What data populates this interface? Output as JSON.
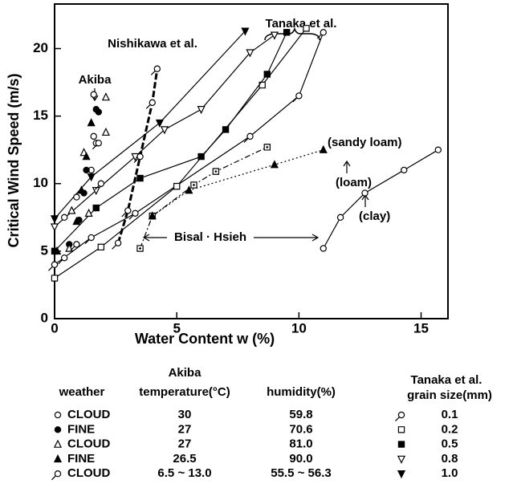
{
  "chart_data": {
    "type": "scatter",
    "ylabel": "Critical Wind Speed (m/s)",
    "xlabel": "Water Content  w   (%)",
    "xlim": [
      0,
      16.1
    ],
    "ylim": [
      0,
      23.3
    ],
    "xticks": [
      0,
      5,
      10,
      15
    ],
    "yticks": [
      0,
      5,
      10,
      15,
      20
    ],
    "color": "#000000",
    "series": [
      {
        "marker": "tailed-circle",
        "line": "solid",
        "x": [
          0,
          1.5,
          3.3,
          8,
          10,
          11
        ],
        "values": [
          4,
          6,
          7.8,
          13.5,
          16.5,
          21.2
        ]
      },
      {
        "marker": "open-square",
        "line": "solid",
        "x": [
          0,
          1.9,
          5,
          8.5,
          10.3
        ],
        "values": [
          3,
          5.3,
          9.8,
          17.3,
          21.5
        ]
      },
      {
        "marker": "filled-square",
        "line": "solid",
        "x": [
          0,
          1.7,
          3.5,
          6,
          7,
          8.7,
          9.5
        ],
        "values": [
          5,
          8.2,
          10.4,
          12,
          14,
          18.1,
          21.2
        ]
      },
      {
        "marker": "open-tri-down",
        "line": "solid",
        "x": [
          0,
          1.7,
          3.3,
          4.5,
          6,
          8,
          9
        ],
        "values": [
          6.8,
          9.5,
          12,
          14,
          15.5,
          19.7,
          21
        ]
      },
      {
        "marker": "filled-tri-down",
        "line": "solid",
        "x": [
          0,
          1.5,
          4.3,
          7.8
        ],
        "values": [
          7.4,
          10.5,
          14.5,
          21.3
        ]
      },
      {
        "marker": "dot-square",
        "line": "dashdot",
        "x": [
          3.5,
          4,
          5.7,
          6.6,
          8.7
        ],
        "values": [
          5.2,
          7.6,
          9.9,
          10.9,
          12.7
        ]
      },
      {
        "marker": "filled-triangle",
        "line": "dotted",
        "x": [
          4,
          5.5,
          9,
          11
        ],
        "values": [
          7.6,
          9.5,
          11.4,
          12.5
        ]
      },
      {
        "marker": "open-circle",
        "line": "solid",
        "x": [
          11,
          11.7,
          12.7,
          14.3,
          15.7
        ],
        "values": [
          5.2,
          7.5,
          9.3,
          11,
          12.5
        ]
      },
      {
        "marker": "tailed-circle",
        "line": "thickdash",
        "x": [
          2.6,
          3,
          3.5,
          4,
          4.2
        ],
        "values": [
          5.6,
          8,
          12,
          16,
          18.5
        ]
      },
      {
        "marker": "open-circle",
        "line": "none",
        "x": [
          1.6,
          1.6,
          1.7,
          1.5,
          0.9,
          0.4
        ],
        "values": [
          16.6,
          13.5,
          13,
          11,
          9,
          7.5
        ]
      },
      {
        "marker": "filled-circle",
        "line": "none",
        "x": [
          1.7,
          1.8,
          1.3,
          1.2,
          1,
          0.6
        ],
        "values": [
          15.5,
          15.3,
          11,
          9.3,
          7.3,
          5.5
        ]
      },
      {
        "marker": "open-triangle",
        "line": "none",
        "x": [
          2.1,
          2.1,
          1.2,
          0.7,
          1.4,
          0.6
        ],
        "values": [
          16.4,
          13.8,
          12.3,
          8,
          7.8,
          5.2
        ]
      },
      {
        "marker": "filled-triangle",
        "line": "none",
        "x": [
          1.5,
          1.3,
          1.1,
          0.9,
          0.1
        ],
        "values": [
          14.5,
          12,
          9.5,
          7.2,
          5
        ]
      },
      {
        "marker": "tailed-circle",
        "line": "none",
        "x": [
          1.8,
          1.9,
          0.9,
          0.4
        ],
        "values": [
          13,
          10,
          5.5,
          4.5
        ]
      }
    ],
    "annotations": [
      "Tanaka et al.",
      "Nishikawa et al.",
      "Akiba",
      "(sandy loam)",
      "(loam)",
      "(clay)",
      "Bisal · Hsieh"
    ]
  },
  "legend_table": {
    "akiba_title": "Akiba",
    "headers": [
      "weather",
      "temperature(°C)",
      "humidity(%)"
    ],
    "rows": [
      [
        "CLOUD",
        "30",
        "59.8"
      ],
      [
        "FINE",
        "27",
        "70.6"
      ],
      [
        "CLOUD",
        "27",
        "81.0"
      ],
      [
        "FINE",
        "26.5",
        "90.0"
      ],
      [
        "CLOUD",
        "6.5 ~ 13.0",
        "55.5 ~ 56.3"
      ]
    ],
    "tanaka_title": "Tanaka et al.",
    "tanaka_header": "grain size(mm)",
    "grain_sizes": [
      "0.1",
      "0.2",
      "0.5",
      "0.8",
      "1.0"
    ]
  }
}
